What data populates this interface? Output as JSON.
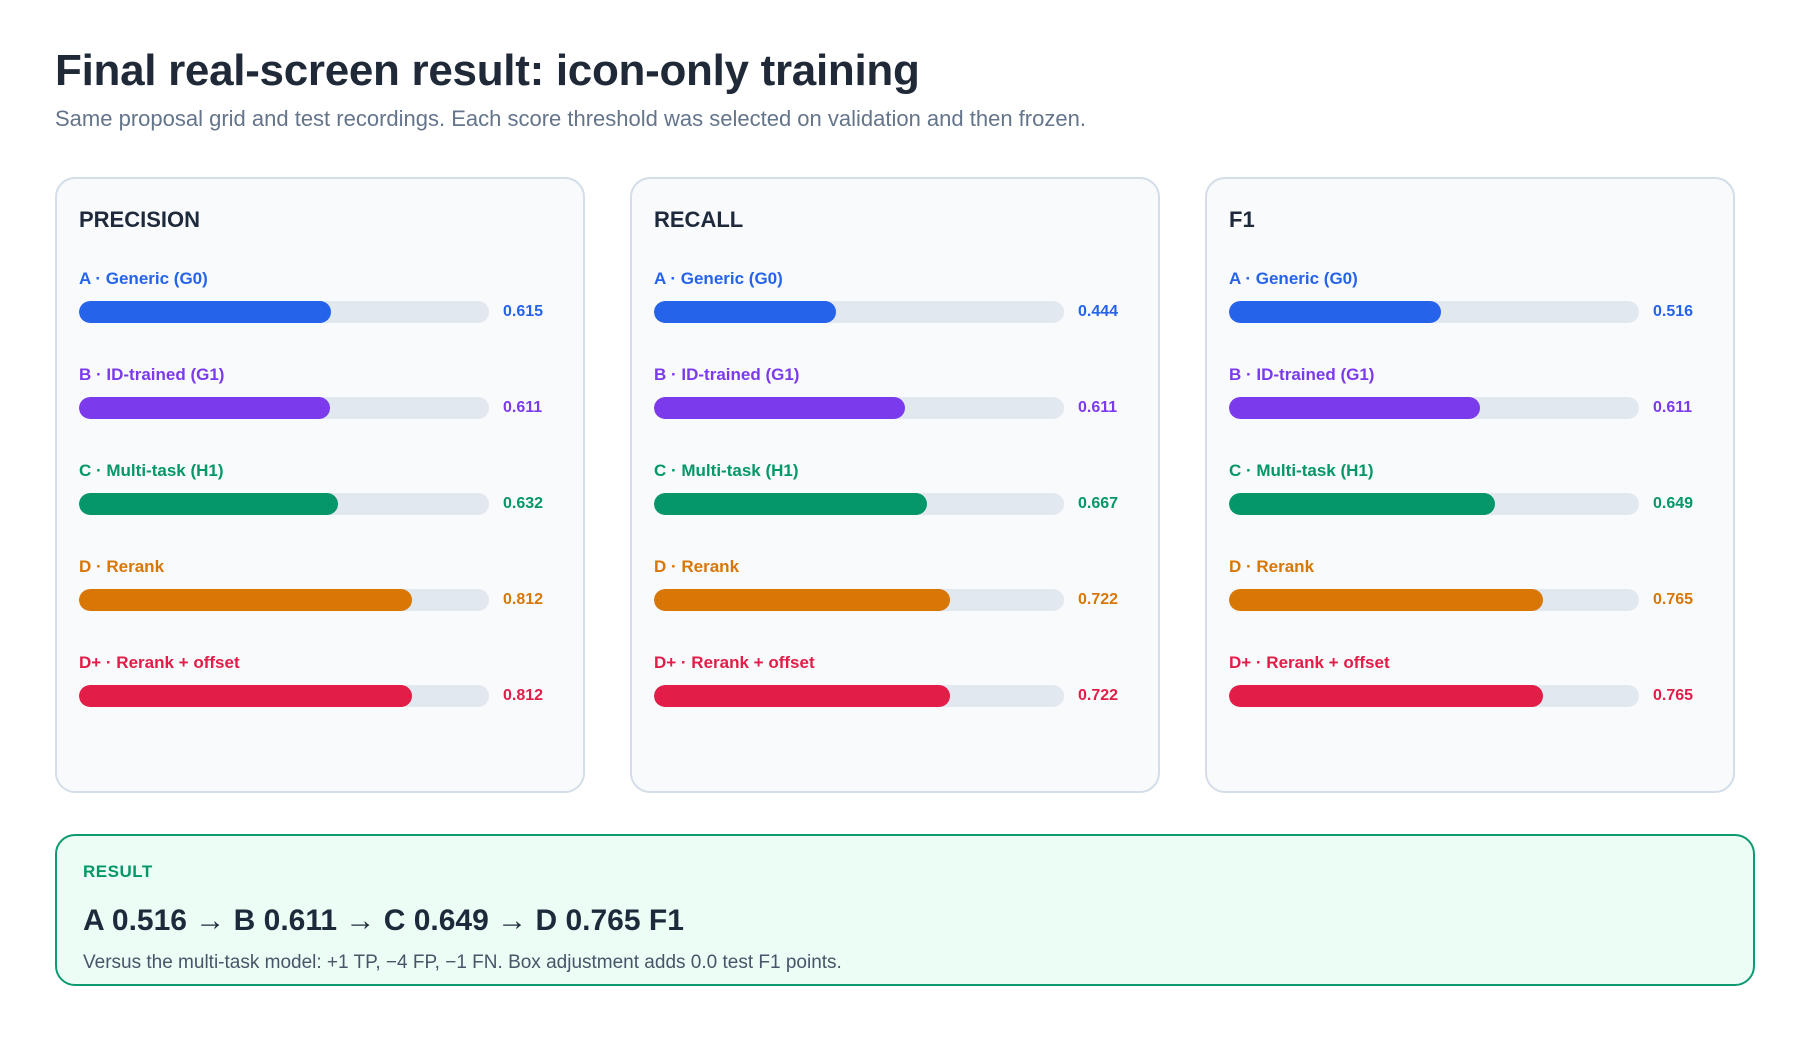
{
  "header": {
    "title": "Final real-screen result: icon-only training",
    "subtitle": "Same proposal grid and test recordings. Each score threshold was selected on validation and then frozen."
  },
  "chart_data": [
    {
      "type": "bar",
      "orientation": "horizontal",
      "title": "PRECISION",
      "xlim": [
        0,
        1
      ],
      "bars": [
        {
          "label": "A · Generic (G0)",
          "value": 0.615,
          "value_label": "0.615",
          "color": "#2563eb"
        },
        {
          "label": "B · ID-trained (G1)",
          "value": 0.611,
          "value_label": "0.611",
          "color": "#7c3aed"
        },
        {
          "label": "C · Multi-task (H1)",
          "value": 0.632,
          "value_label": "0.632",
          "color": "#059669"
        },
        {
          "label": "D · Rerank",
          "value": 0.812,
          "value_label": "0.812",
          "color": "#d97706"
        },
        {
          "label": "D+ · Rerank + offset",
          "value": 0.812,
          "value_label": "0.812",
          "color": "#e11d48"
        }
      ]
    },
    {
      "type": "bar",
      "orientation": "horizontal",
      "title": "RECALL",
      "xlim": [
        0,
        1
      ],
      "bars": [
        {
          "label": "A · Generic (G0)",
          "value": 0.444,
          "value_label": "0.444",
          "color": "#2563eb"
        },
        {
          "label": "B · ID-trained (G1)",
          "value": 0.611,
          "value_label": "0.611",
          "color": "#7c3aed"
        },
        {
          "label": "C · Multi-task (H1)",
          "value": 0.667,
          "value_label": "0.667",
          "color": "#059669"
        },
        {
          "label": "D · Rerank",
          "value": 0.722,
          "value_label": "0.722",
          "color": "#d97706"
        },
        {
          "label": "D+ · Rerank + offset",
          "value": 0.722,
          "value_label": "0.722",
          "color": "#e11d48"
        }
      ]
    },
    {
      "type": "bar",
      "orientation": "horizontal",
      "title": "F1",
      "xlim": [
        0,
        1
      ],
      "bars": [
        {
          "label": "A · Generic (G0)",
          "value": 0.516,
          "value_label": "0.516",
          "color": "#2563eb"
        },
        {
          "label": "B · ID-trained (G1)",
          "value": 0.611,
          "value_label": "0.611",
          "color": "#7c3aed"
        },
        {
          "label": "C · Multi-task (H1)",
          "value": 0.649,
          "value_label": "0.649",
          "color": "#059669"
        },
        {
          "label": "D · Rerank",
          "value": 0.765,
          "value_label": "0.765",
          "color": "#d97706"
        },
        {
          "label": "D+ · Rerank + offset",
          "value": 0.765,
          "value_label": "0.765",
          "color": "#e11d48"
        }
      ]
    }
  ],
  "result": {
    "label": "RESULT",
    "headline": "A 0.516  →  B 0.611  →  C 0.649  →  D 0.765 F1",
    "note": "Versus the multi-task model: +1 TP, −4 FP, −1 FN. Box adjustment adds 0.0 test F1 points."
  }
}
